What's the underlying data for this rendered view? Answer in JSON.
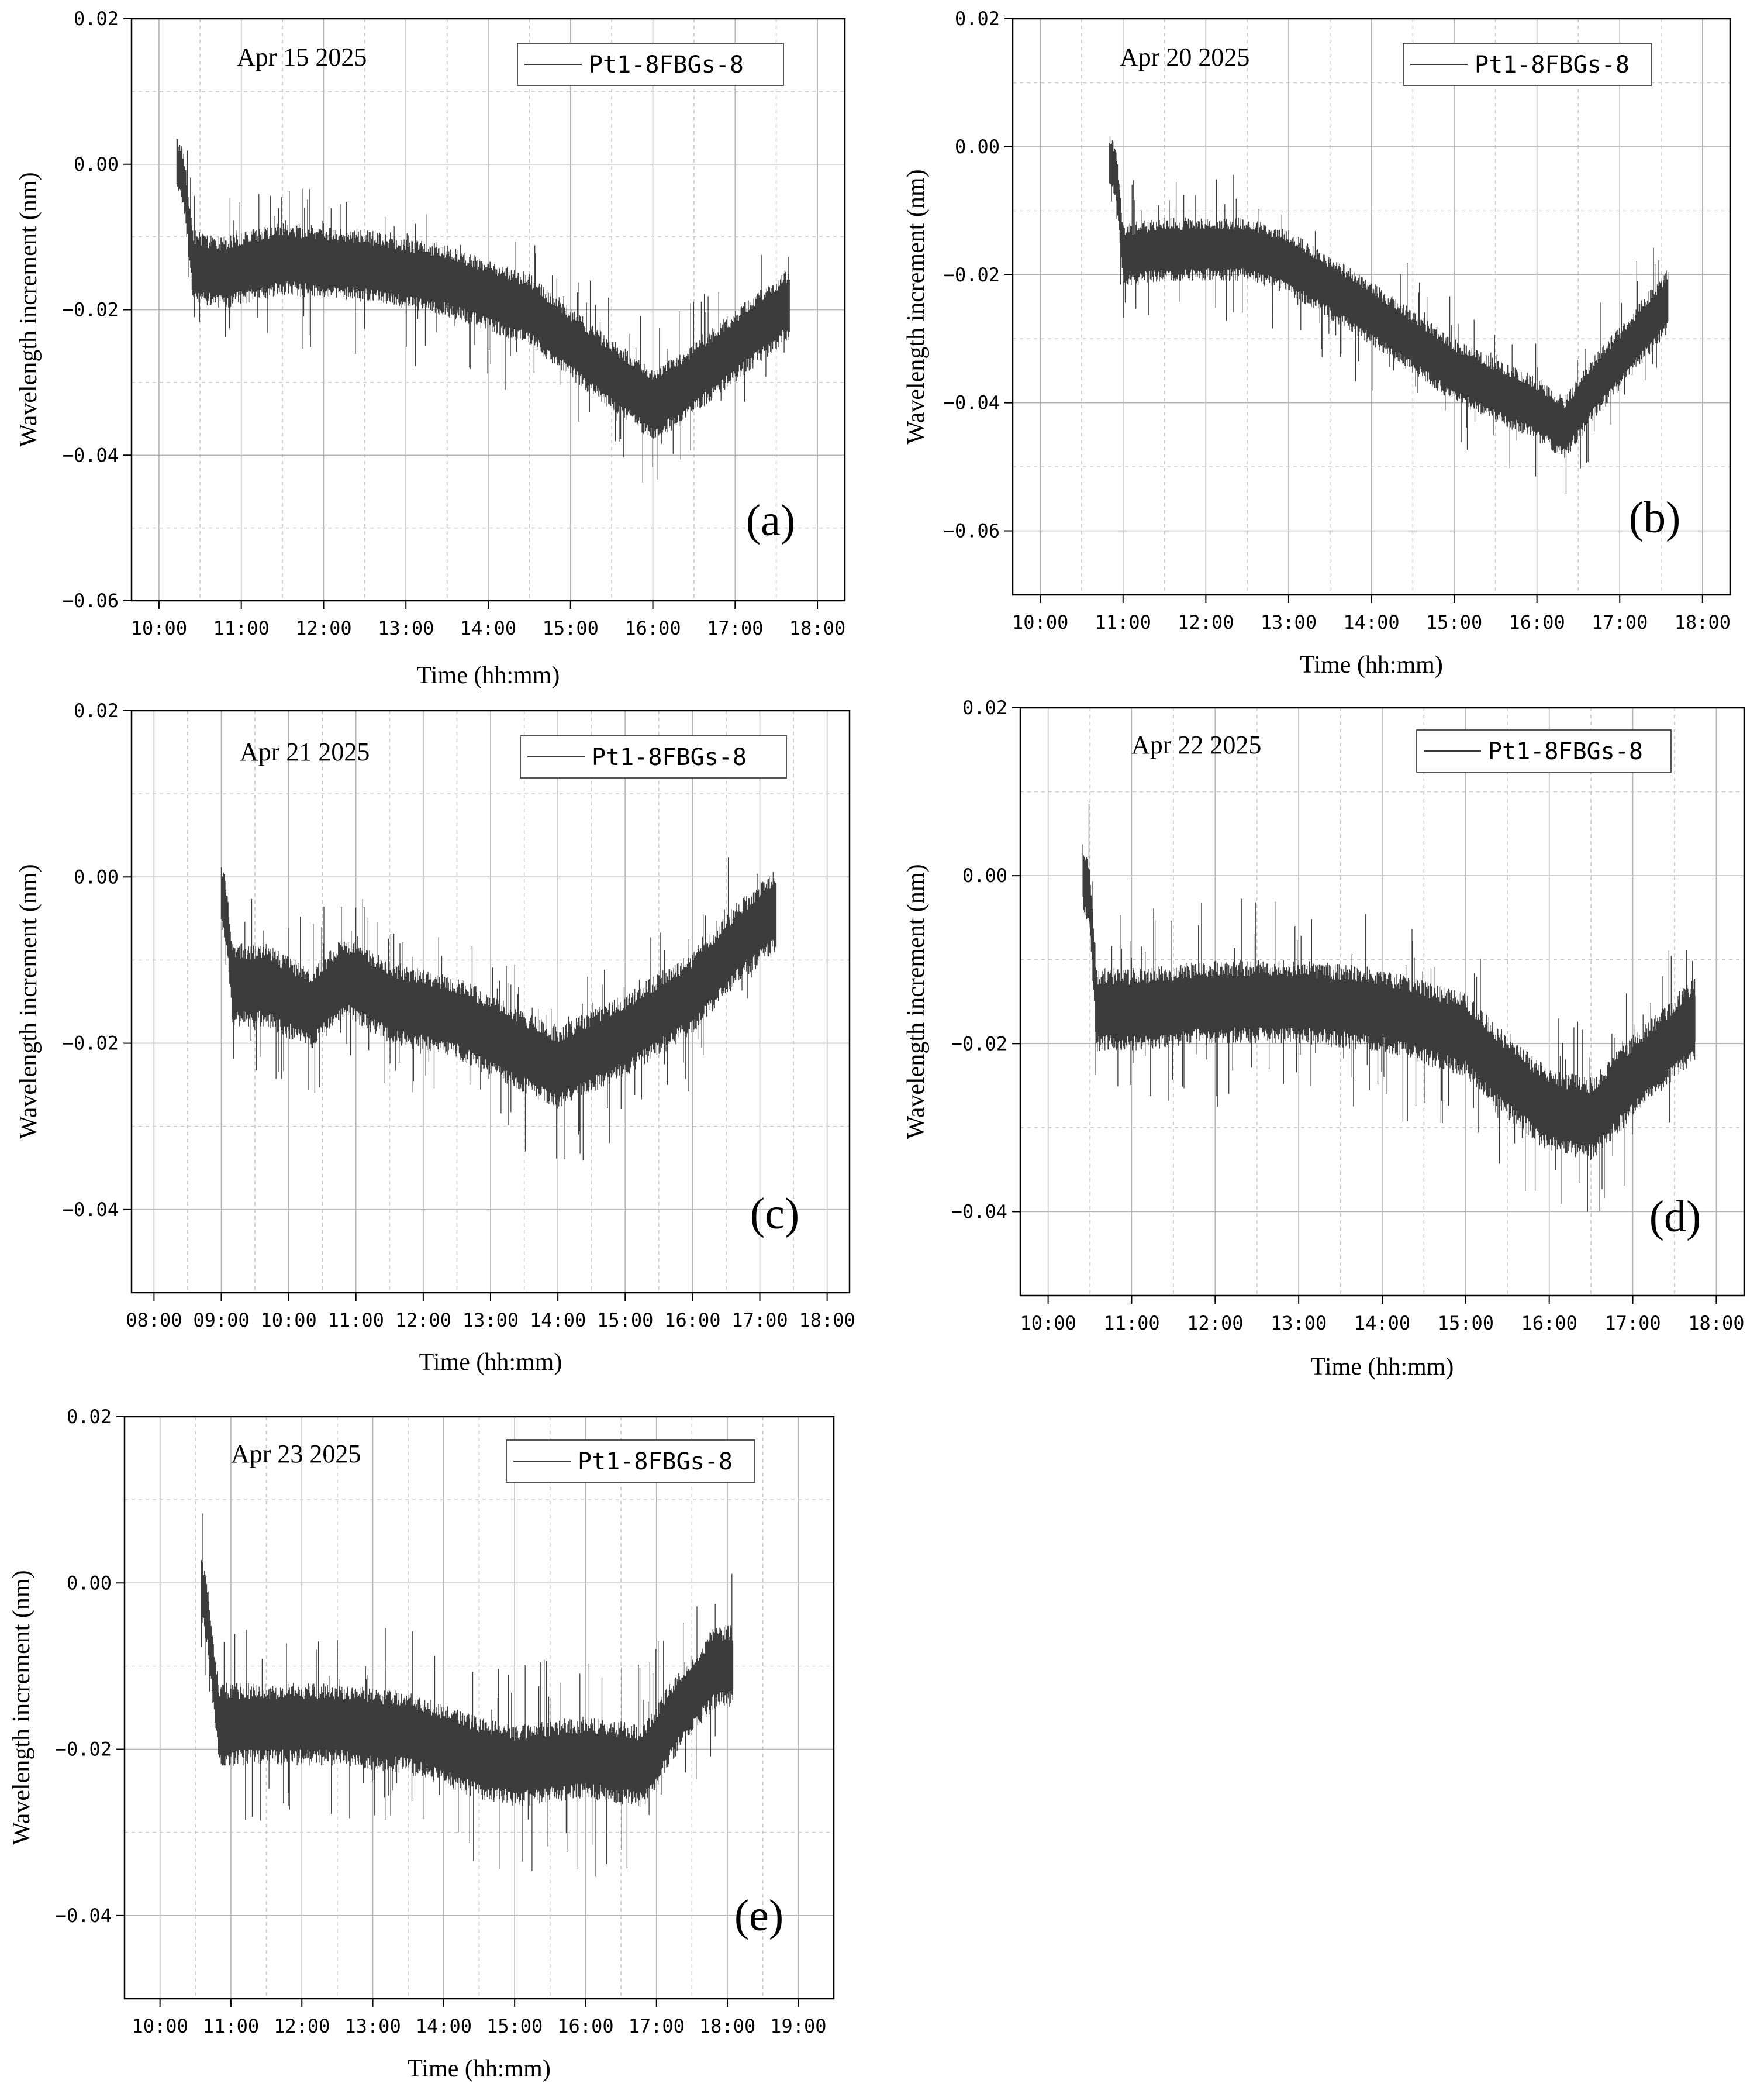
{
  "colors": {
    "series": "#3c3c3c",
    "grid_major": "#b4b4b4",
    "grid_minor": "#c8c8c8",
    "frame": "#000000"
  },
  "chart_data": [
    {
      "type": "line",
      "panel_label": "(a)",
      "date_label": "Apr 15 2025",
      "legend": "Pt1-8FBGs-8",
      "xlabel": "Time (hh:mm)",
      "ylabel": "Wavelength  increment (nm)",
      "x_ticks": [
        "10:00",
        "11:00",
        "12:00",
        "13:00",
        "14:00",
        "15:00",
        "16:00",
        "17:00",
        "18:00"
      ],
      "y_ticks": [
        "0.02",
        "0.00",
        "−0.02",
        "−0.04",
        "−0.06"
      ],
      "xlim": [
        "09:40",
        "18:20"
      ],
      "ylim": [
        -0.06,
        0.02
      ],
      "series": [
        {
          "name": "Pt1-8FBGs-8",
          "x": [
            "10:13",
            "10:18",
            "10:25",
            "10:45",
            "11:30",
            "12:30",
            "13:30",
            "14:30",
            "15:30",
            "16:00",
            "16:20",
            "17:00",
            "17:40"
          ],
          "mean": [
            0.0,
            -0.002,
            -0.014,
            -0.015,
            -0.013,
            -0.014,
            -0.016,
            -0.02,
            -0.029,
            -0.033,
            -0.031,
            -0.025,
            -0.019
          ],
          "half_band": [
            0.004,
            0.004,
            0.005,
            0.005,
            0.005,
            0.005,
            0.005,
            0.005,
            0.005,
            0.005,
            0.005,
            0.005,
            0.005
          ],
          "spike_max": [
            0.011,
            0.009,
            -0.003,
            -0.004,
            -0.002,
            -0.006,
            -0.007,
            -0.01,
            -0.018,
            -0.022,
            -0.02,
            -0.014,
            -0.009
          ],
          "spike_min": [
            -0.011,
            -0.011,
            -0.026,
            -0.026,
            -0.028,
            -0.028,
            -0.028,
            -0.033,
            -0.042,
            -0.046,
            -0.044,
            -0.035,
            -0.028
          ]
        }
      ]
    },
    {
      "type": "line",
      "panel_label": "(b)",
      "date_label": "Apr 20 2025",
      "legend": "Pt1-8FBGs-8",
      "xlabel": "Time (hh:mm)",
      "ylabel": "Wavelength  increment (nm)",
      "x_ticks": [
        "10:00",
        "11:00",
        "12:00",
        "13:00",
        "14:00",
        "15:00",
        "16:00",
        "17:00",
        "18:00"
      ],
      "y_ticks": [
        "0.02",
        "0.00",
        "−0.02",
        "−0.04",
        "−0.06"
      ],
      "xlim": [
        "09:40",
        "18:20"
      ],
      "ylim": [
        -0.07,
        0.02
      ],
      "series": [
        {
          "name": "Pt1-8FBGs-8",
          "x": [
            "10:50",
            "10:55",
            "11:00",
            "11:30",
            "12:30",
            "13:00",
            "14:00",
            "15:00",
            "16:00",
            "16:20",
            "16:40",
            "17:00",
            "17:35"
          ],
          "mean": [
            -0.002,
            -0.004,
            -0.017,
            -0.016,
            -0.016,
            -0.018,
            -0.026,
            -0.035,
            -0.041,
            -0.044,
            -0.038,
            -0.033,
            -0.024
          ],
          "half_band": [
            0.004,
            0.004,
            0.005,
            0.005,
            0.005,
            0.005,
            0.005,
            0.005,
            0.005,
            0.005,
            0.005,
            0.005,
            0.005
          ],
          "spike_max": [
            0.01,
            0.008,
            -0.005,
            -0.005,
            -0.003,
            -0.006,
            -0.014,
            -0.023,
            -0.03,
            -0.033,
            -0.026,
            -0.02,
            -0.01
          ],
          "spike_min": [
            -0.012,
            -0.012,
            -0.028,
            -0.028,
            -0.028,
            -0.03,
            -0.039,
            -0.048,
            -0.053,
            -0.055,
            -0.05,
            -0.044,
            -0.035
          ]
        }
      ]
    },
    {
      "type": "line",
      "panel_label": "(c)",
      "date_label": "Apr 21 2025",
      "legend": "Pt1-8FBGs-8",
      "xlabel": "Time (hh:mm)",
      "ylabel": "Wavelength  increment (nm)",
      "x_ticks": [
        "08:00",
        "09:00",
        "10:00",
        "11:00",
        "12:00",
        "13:00",
        "14:00",
        "15:00",
        "16:00",
        "17:00",
        "18:00"
      ],
      "y_ticks": [
        "0.02",
        "0.00",
        "−0.02",
        "−0.04"
      ],
      "xlim": [
        "07:40",
        "18:20"
      ],
      "ylim": [
        -0.05,
        0.02
      ],
      "series": [
        {
          "name": "Pt1-8FBGs-8",
          "x": [
            "09:00",
            "09:05",
            "09:10",
            "09:40",
            "10:20",
            "10:50",
            "11:30",
            "12:30",
            "13:30",
            "14:00",
            "15:00",
            "16:00",
            "16:40",
            "17:15"
          ],
          "mean": [
            -0.002,
            -0.005,
            -0.013,
            -0.013,
            -0.016,
            -0.012,
            -0.015,
            -0.017,
            -0.021,
            -0.023,
            -0.019,
            -0.014,
            -0.008,
            -0.004
          ],
          "half_band": [
            0.004,
            0.004,
            0.005,
            0.005,
            0.005,
            0.005,
            0.005,
            0.005,
            0.005,
            0.005,
            0.005,
            0.005,
            0.005,
            0.005
          ],
          "spike_max": [
            0.009,
            0.007,
            -0.001,
            -0.002,
            -0.005,
            -0.001,
            -0.004,
            -0.006,
            -0.01,
            -0.012,
            -0.009,
            -0.004,
            0.004,
            0.009
          ],
          "spike_min": [
            -0.013,
            -0.015,
            -0.024,
            -0.024,
            -0.027,
            -0.023,
            -0.026,
            -0.028,
            -0.033,
            -0.036,
            -0.031,
            -0.026,
            -0.02,
            -0.015
          ]
        }
      ]
    },
    {
      "type": "line",
      "panel_label": "(d)",
      "date_label": "Apr 22 2025",
      "legend": "Pt1-8FBGs-8",
      "xlabel": "Time (hh:mm)",
      "ylabel": "Wavelength  increment (nm)",
      "x_ticks": [
        "10:00",
        "11:00",
        "12:00",
        "13:00",
        "14:00",
        "15:00",
        "16:00",
        "17:00",
        "18:00"
      ],
      "y_ticks": [
        "0.02",
        "0.00",
        "−0.02",
        "−0.04"
      ],
      "xlim": [
        "09:40",
        "18:20"
      ],
      "ylim": [
        -0.05,
        0.02
      ],
      "series": [
        {
          "name": "Pt1-8FBGs-8",
          "x": [
            "10:25",
            "10:30",
            "10:35",
            "11:00",
            "12:00",
            "13:00",
            "14:00",
            "15:00",
            "15:30",
            "16:00",
            "16:30",
            "17:00",
            "17:45"
          ],
          "mean": [
            0.0,
            -0.003,
            -0.016,
            -0.016,
            -0.015,
            -0.015,
            -0.016,
            -0.019,
            -0.024,
            -0.028,
            -0.029,
            -0.024,
            -0.017
          ],
          "half_band": [
            0.004,
            0.004,
            0.005,
            0.005,
            0.005,
            0.005,
            0.005,
            0.005,
            0.005,
            0.005,
            0.005,
            0.005,
            0.005
          ],
          "spike_max": [
            0.012,
            0.009,
            -0.004,
            -0.004,
            -0.002,
            -0.002,
            -0.004,
            -0.007,
            -0.012,
            -0.016,
            -0.017,
            -0.012,
            -0.003
          ],
          "spike_min": [
            -0.01,
            -0.012,
            -0.028,
            -0.028,
            -0.028,
            -0.027,
            -0.029,
            -0.031,
            -0.036,
            -0.04,
            -0.042,
            -0.036,
            -0.028
          ]
        }
      ]
    },
    {
      "type": "line",
      "panel_label": "(e)",
      "date_label": "Apr 23 2025",
      "legend": "Pt1-8FBGs-8",
      "xlabel": "Time (hh:mm)",
      "ylabel": "Wavelength  increment (nm)",
      "x_ticks": [
        "10:00",
        "11:00",
        "12:00",
        "13:00",
        "14:00",
        "15:00",
        "16:00",
        "17:00",
        "18:00",
        "19:00"
      ],
      "y_ticks": [
        "0.02",
        "0.00",
        "−0.02",
        "−0.04"
      ],
      "xlim": [
        "09:30",
        "19:30"
      ],
      "ylim": [
        -0.05,
        0.02
      ],
      "series": [
        {
          "name": "Pt1-8FBGs-8",
          "x": [
            "10:35",
            "10:40",
            "10:50",
            "11:30",
            "12:30",
            "13:30",
            "14:30",
            "15:00",
            "16:00",
            "16:50",
            "17:20",
            "17:50",
            "18:05"
          ],
          "mean": [
            0.0,
            -0.004,
            -0.017,
            -0.017,
            -0.017,
            -0.018,
            -0.021,
            -0.022,
            -0.021,
            -0.022,
            -0.015,
            -0.01,
            -0.01
          ],
          "half_band": [
            0.004,
            0.004,
            0.005,
            0.005,
            0.005,
            0.005,
            0.005,
            0.005,
            0.005,
            0.005,
            0.005,
            0.005,
            0.005
          ],
          "spike_max": [
            0.011,
            0.01,
            -0.004,
            -0.004,
            -0.005,
            -0.005,
            -0.008,
            -0.009,
            -0.008,
            -0.01,
            -0.002,
            0.005,
            0.002
          ],
          "spike_min": [
            -0.012,
            -0.013,
            -0.029,
            -0.029,
            -0.03,
            -0.031,
            -0.035,
            -0.036,
            -0.035,
            -0.037,
            -0.028,
            -0.022,
            -0.018
          ]
        }
      ]
    }
  ]
}
